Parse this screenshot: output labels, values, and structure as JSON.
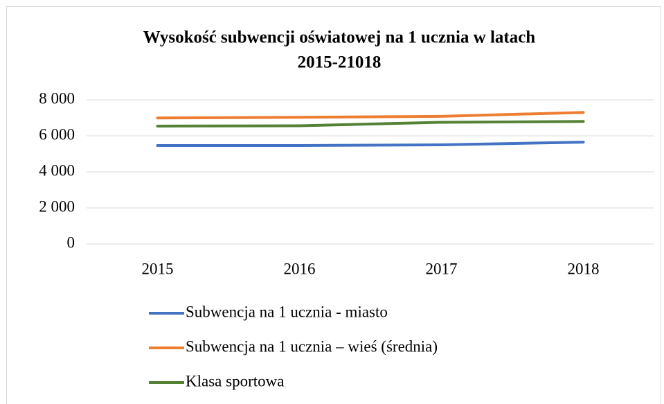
{
  "chart_data": {
    "type": "line",
    "title": [
      "Wysokość subwencji oświatowej  na 1 ucznia w latach",
      "2015-21018"
    ],
    "categories": [
      "2015",
      "2016",
      "2017",
      "2018"
    ],
    "series": [
      {
        "name": "Subwencja na 1 ucznia - miasto",
        "color": "#4472c4",
        "values": [
          5460,
          5460,
          5500,
          5650
        ]
      },
      {
        "name": "Subwencja na 1 ucznia – wieś (średnia)",
        "color": "#ed7d31",
        "values": [
          6990,
          7030,
          7080,
          7300
        ]
      },
      {
        "name": "Klasa sportowa",
        "color": "#548235",
        "values": [
          6540,
          6560,
          6750,
          6800
        ]
      }
    ],
    "ylim": [
      0,
      8000
    ],
    "yticks": [
      0,
      {
        "value": 2000,
        "label": "2 000"
      },
      {
        "value": 4000,
        "label": "4 000"
      },
      {
        "value": 6000,
        "label": "6 000"
      },
      {
        "value": 8000,
        "label": "8 000"
      }
    ],
    "grid": true,
    "legend": "bottom"
  }
}
